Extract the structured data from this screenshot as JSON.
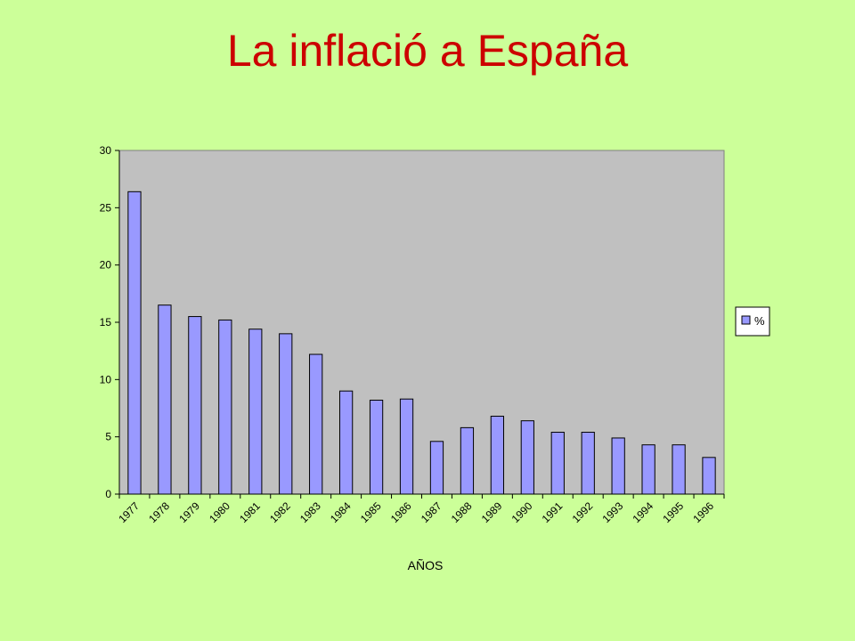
{
  "slide": {
    "title": "La inflació a España"
  },
  "chart_data": {
    "type": "bar",
    "title": "",
    "xlabel": "AÑOS",
    "ylabel": "",
    "categories": [
      "1977",
      "1978",
      "1979",
      "1980",
      "1981",
      "1982",
      "1983",
      "1984",
      "1985",
      "1986",
      "1987",
      "1988",
      "1989",
      "1990",
      "1991",
      "1992",
      "1993",
      "1994",
      "1995",
      "1996"
    ],
    "series": [
      {
        "name": "%",
        "values": [
          26.4,
          16.5,
          15.5,
          15.2,
          14.4,
          14.0,
          12.2,
          9.0,
          8.2,
          8.3,
          4.6,
          5.8,
          6.8,
          6.4,
          5.4,
          5.4,
          4.9,
          4.3,
          4.3,
          3.2
        ]
      }
    ],
    "ylim": [
      0,
      30
    ],
    "yticks": [
      0,
      5,
      10,
      15,
      20,
      25,
      30
    ],
    "grid": false,
    "legend": "right",
    "colors": {
      "bar": "#9999ff",
      "bar_edge": "#000000",
      "plot_bg": "#c0c0c0"
    }
  }
}
